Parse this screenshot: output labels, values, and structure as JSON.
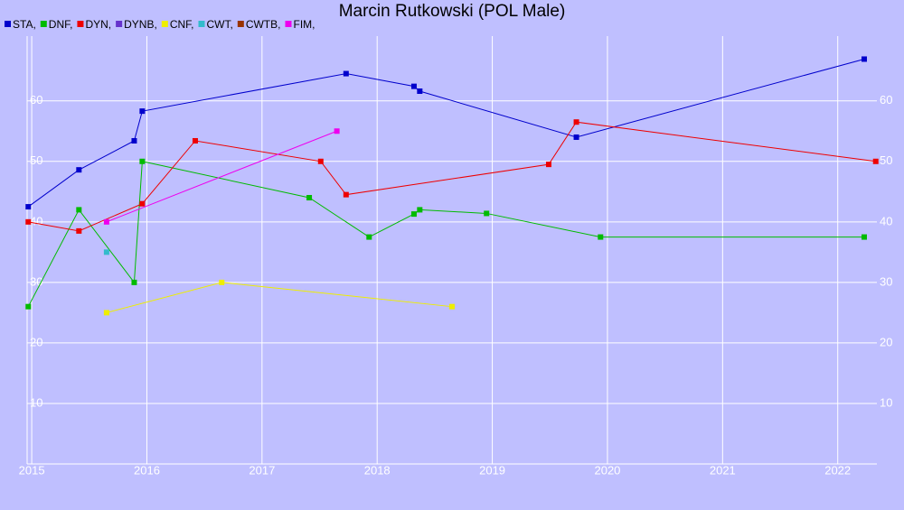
{
  "chart_data": {
    "type": "line",
    "title": "Marcin Rutkowski (POL Male)",
    "xlim": [
      2014.96,
      2022.34
    ],
    "ylim": [
      0,
      70.7
    ],
    "xticks": [
      2015,
      2016,
      2017,
      2018,
      2019,
      2020,
      2021,
      2022
    ],
    "yticks": [
      10,
      20,
      30,
      40,
      50,
      60
    ],
    "grid": true,
    "series": [
      {
        "name": "STA,",
        "color": "#0000cc",
        "x": [
          2014.97,
          2015.41,
          2015.89,
          2015.96,
          2017.73,
          2018.32,
          2018.37,
          2019.73,
          2022.23
        ],
        "values": [
          42.5,
          48.6,
          53.4,
          58.3,
          64.5,
          62.4,
          61.6,
          54,
          66.9
        ]
      },
      {
        "name": "DNF,",
        "color": "#00bb00",
        "x": [
          2014.97,
          2015.41,
          2015.89,
          2015.96,
          2017.41,
          2017.93,
          2018.32,
          2018.37,
          2018.95,
          2019.94,
          2022.23
        ],
        "values": [
          26,
          42,
          30,
          50,
          44,
          37.5,
          41.3,
          42,
          41.4,
          37.5,
          37.5
        ]
      },
      {
        "name": "DYN,",
        "color": "#ee0000",
        "x": [
          2014.97,
          2015.41,
          2015.96,
          2016.42,
          2017.51,
          2017.73,
          2019.49,
          2019.73,
          2022.33
        ],
        "values": [
          40,
          38.5,
          43,
          53.4,
          50,
          44.5,
          49.5,
          56.5,
          50
        ]
      },
      {
        "name": "DYNB,",
        "color": "#6633cc",
        "x": [],
        "values": []
      },
      {
        "name": "CNF,",
        "color": "#eeee00",
        "x": [
          2015.65,
          2016.65,
          2018.65
        ],
        "values": [
          25,
          30,
          26
        ]
      },
      {
        "name": "CWT,",
        "color": "#33bbcc",
        "x": [
          2015.65
        ],
        "values": [
          35
        ]
      },
      {
        "name": "CWTB,",
        "color": "#993300",
        "x": [],
        "values": []
      },
      {
        "name": "FIM,",
        "color": "#ee00ee",
        "x": [
          2015.65,
          2017.65
        ],
        "values": [
          40,
          55
        ]
      }
    ]
  }
}
